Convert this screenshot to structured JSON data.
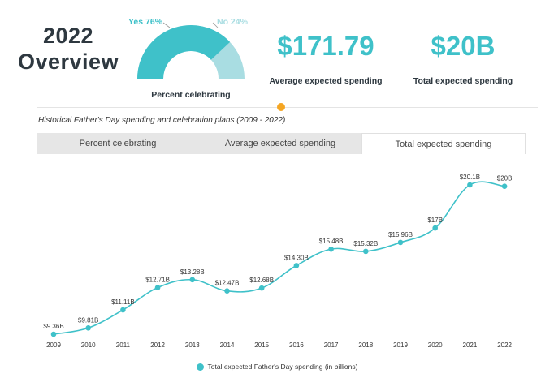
{
  "header": {
    "title_line1": "2022",
    "title_line2": "Overview"
  },
  "gauge": {
    "yes_label": "Yes 76%",
    "no_label": "No 24%",
    "yes_value": 76,
    "no_value": 24,
    "caption": "Percent celebrating"
  },
  "stats": [
    {
      "value": "$171.79",
      "label": "Average expected spending"
    },
    {
      "value": "$20B",
      "label": "Total expected spending"
    }
  ],
  "subtitle": "Historical Father's Day spending and celebration plans (2009 - 2022)",
  "tabs": [
    {
      "label": "Percent celebrating",
      "active": false
    },
    {
      "label": "Average expected spending",
      "active": false
    },
    {
      "label": "Total expected spending",
      "active": true
    }
  ],
  "colors": {
    "accent": "#3fc1c9",
    "accent_light": "#a9dde2",
    "dark_text": "#2e3840",
    "marker": "#f5a623"
  },
  "chart_data": {
    "type": "line",
    "x": [
      "2009",
      "2010",
      "2011",
      "2012",
      "2013",
      "2014",
      "2015",
      "2016",
      "2017",
      "2018",
      "2019",
      "2020",
      "2021",
      "2022"
    ],
    "series": [
      {
        "name": "Total expected Father's Day spending (in billions)",
        "values": [
          9.36,
          9.81,
          11.11,
          12.71,
          13.28,
          12.47,
          12.68,
          14.3,
          15.48,
          15.32,
          15.96,
          17,
          20.1,
          20
        ],
        "labels": [
          "$9.36B",
          "$9.81B",
          "$11.11B",
          "$12.71B",
          "$13.28B",
          "$12.47B",
          "$12.68B",
          "$14.30B",
          "$15.48B",
          "$15.32B",
          "$15.96B",
          "$17B",
          "$20.1B",
          "$20B"
        ]
      }
    ],
    "grid": false,
    "legend_position": "bottom"
  }
}
